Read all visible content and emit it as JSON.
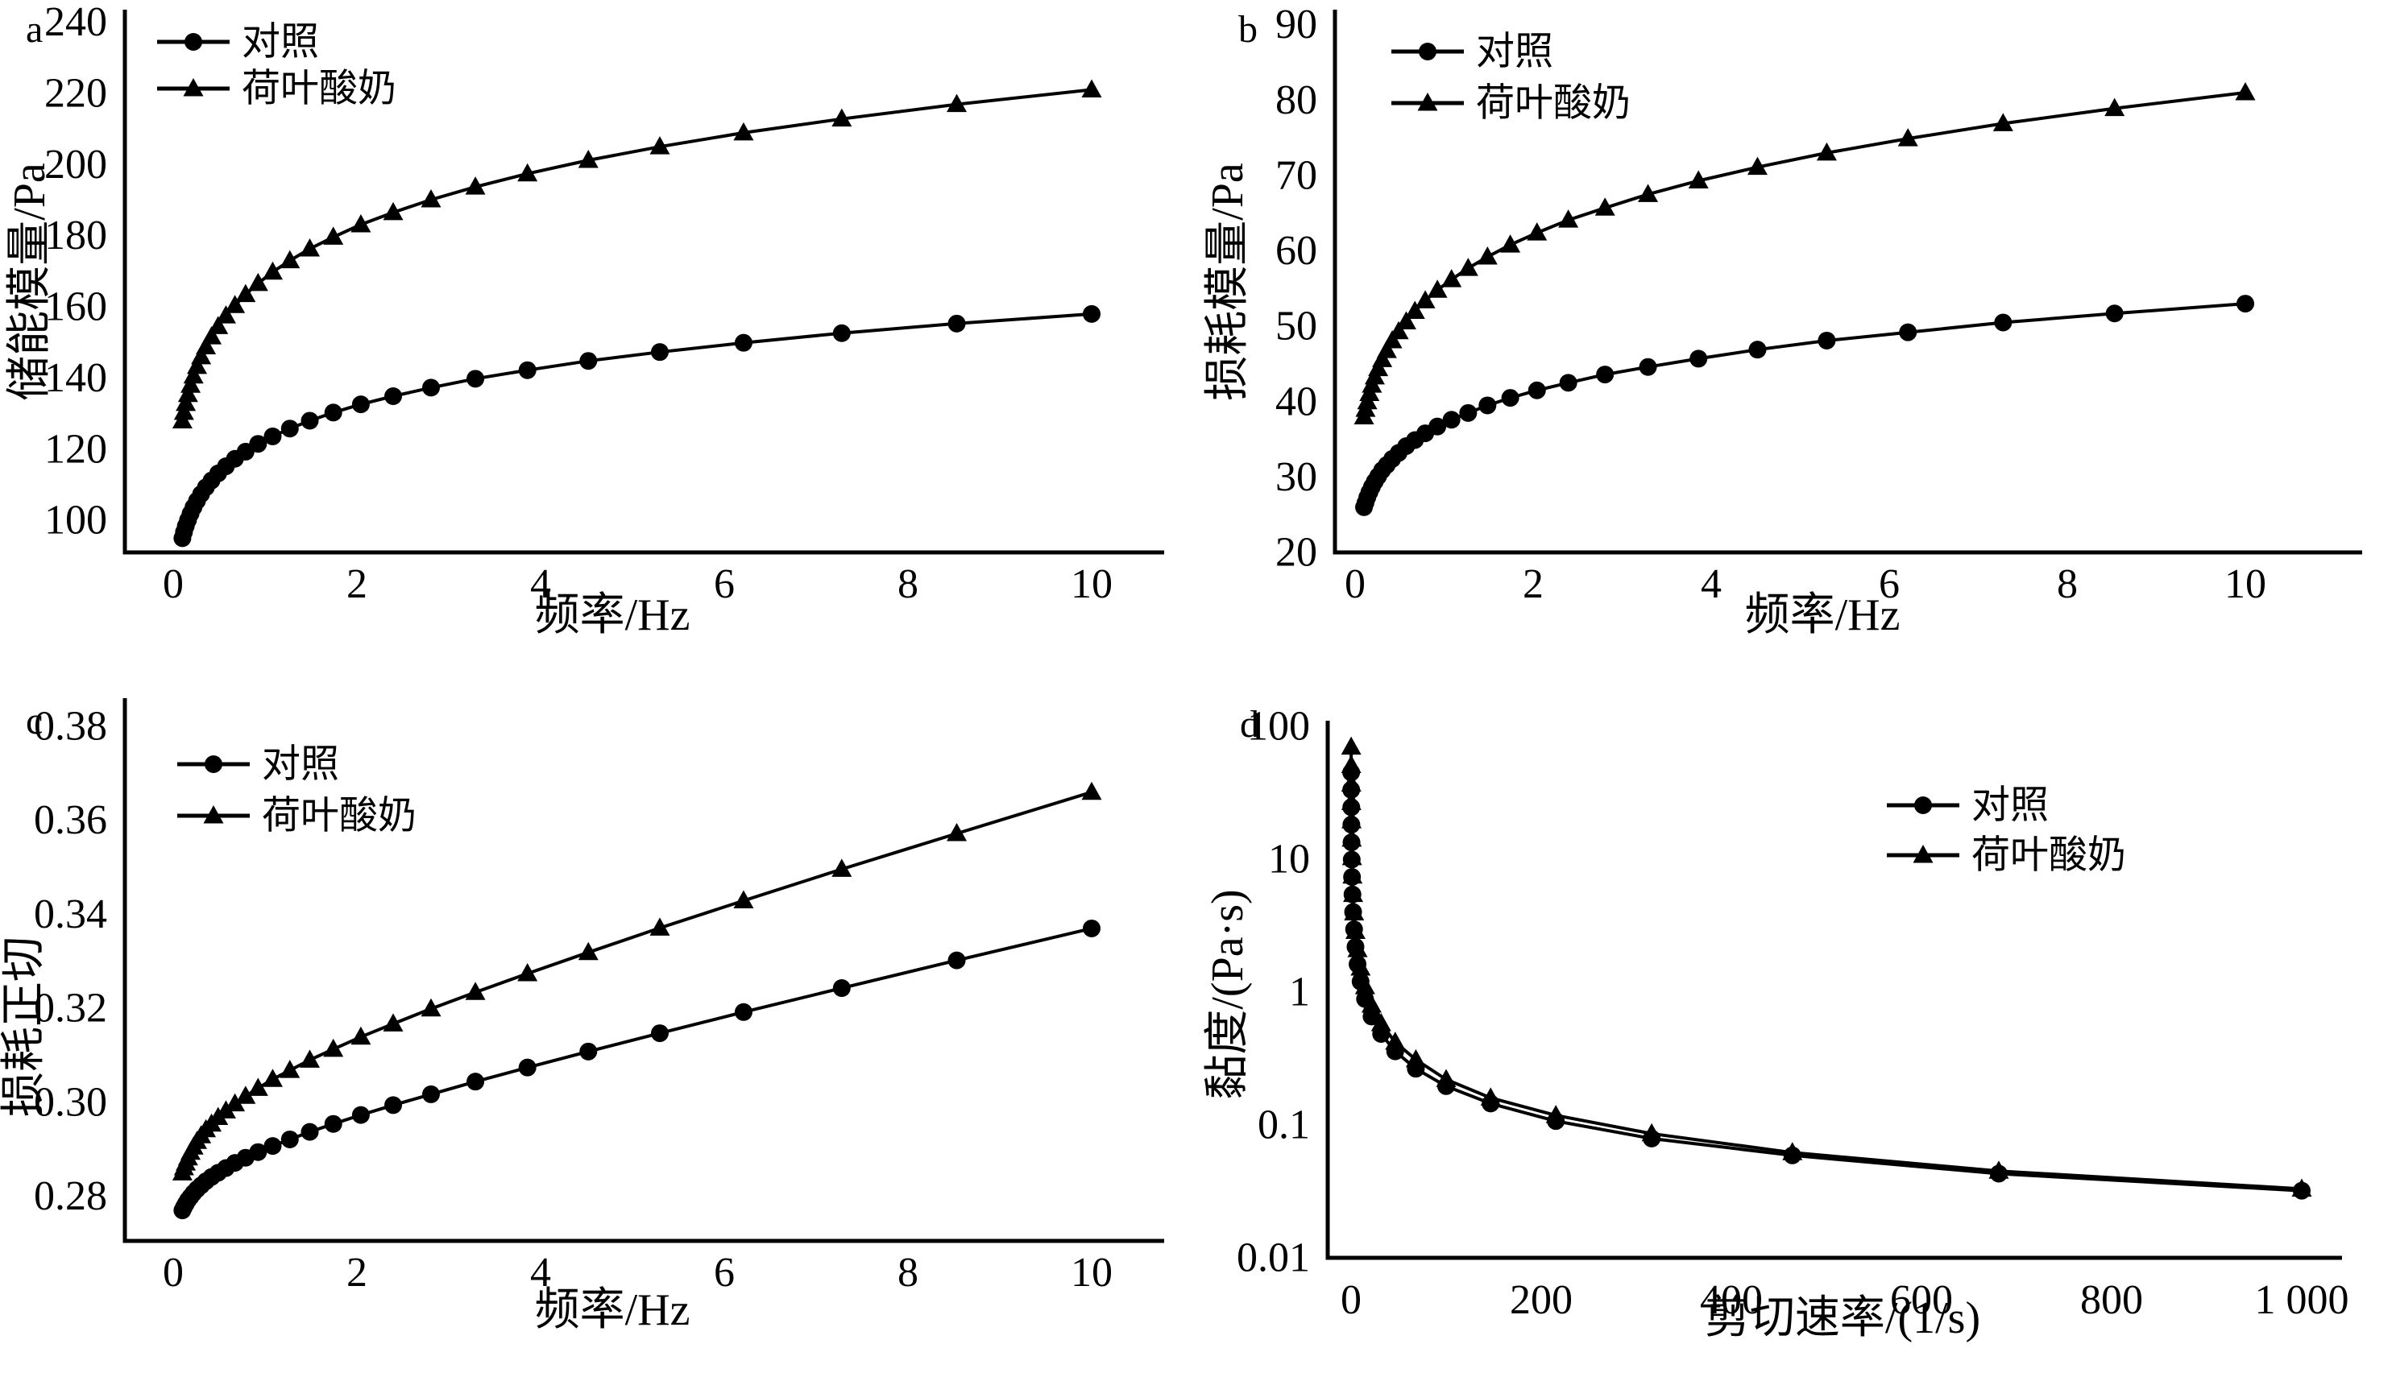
{
  "figure": {
    "background": "#ffffff",
    "ink_color": "#000000"
  },
  "chart_data": [
    {
      "id": "a",
      "type": "line",
      "panel_label": "a",
      "title": "",
      "xlabel": "频率/Hz",
      "ylabel": "储能模量/Pa",
      "xlim": [
        0,
        10.8
      ],
      "ylim": [
        91,
        243.5
      ],
      "grid": false,
      "legend_position": "top-left",
      "xticks": [
        0,
        2,
        4,
        6,
        8,
        10
      ],
      "xtick_labels": [
        "0",
        "2",
        "4",
        "6",
        "8",
        "10"
      ],
      "yticks": [
        100,
        120,
        140,
        160,
        180,
        200,
        220,
        240
      ],
      "ytick_labels": [
        "100",
        "120",
        "140",
        "160",
        "180",
        "200",
        "220",
        "240"
      ],
      "x": [
        0.1,
        0.117,
        0.137,
        0.161,
        0.189,
        0.221,
        0.259,
        0.304,
        0.356,
        0.417,
        0.489,
        0.574,
        0.672,
        0.788,
        0.924,
        1.083,
        1.27,
        1.487,
        1.743,
        2.043,
        2.395,
        2.807,
        3.29,
        3.857,
        4.52,
        5.298,
        6.21,
        7.279,
        8.531,
        10
      ],
      "series": [
        {
          "name": "对照",
          "marker": "circle",
          "values": [
            95.0,
            96.7,
            98.4,
            100.1,
            101.9,
            103.7,
            105.5,
            107.4,
            109.3,
            111.2,
            113.2,
            115.2,
            117.3,
            119.3,
            121.5,
            123.6,
            125.8,
            128.0,
            130.3,
            132.6,
            134.9,
            137.3,
            139.8,
            142.2,
            144.8,
            147.3,
            149.9,
            152.6,
            155.3,
            158.0
          ]
        },
        {
          "name": "荷叶酸奶",
          "marker": "triangle",
          "values": [
            128.0,
            130.4,
            132.9,
            135.4,
            138.0,
            140.6,
            143.3,
            146.0,
            148.8,
            151.6,
            154.5,
            157.5,
            160.4,
            163.5,
            166.6,
            169.8,
            173.0,
            176.3,
            179.6,
            183.1,
            186.5,
            190.1,
            193.7,
            197.4,
            201.2,
            205.0,
            208.9,
            212.8,
            216.9,
            221.0
          ]
        }
      ]
    },
    {
      "id": "b",
      "type": "line",
      "panel_label": "b",
      "title": "",
      "xlabel": "频率/Hz",
      "ylabel": "损耗模量/Pa",
      "xlim": [
        0,
        10.8
      ],
      "ylim": [
        20,
        92
      ],
      "grid": false,
      "legend_position": "top-left",
      "xticks": [
        0,
        2,
        4,
        6,
        8,
        10
      ],
      "xtick_labels": [
        "0",
        "2",
        "4",
        "6",
        "8",
        "10"
      ],
      "yticks": [
        20,
        30,
        40,
        50,
        60,
        70,
        80,
        90
      ],
      "ytick_labels": [
        "20",
        "30",
        "40",
        "50",
        "60",
        "70",
        "80",
        "90"
      ],
      "x": [
        0.1,
        0.117,
        0.137,
        0.161,
        0.189,
        0.221,
        0.259,
        0.304,
        0.356,
        0.417,
        0.489,
        0.574,
        0.672,
        0.788,
        0.924,
        1.083,
        1.27,
        1.487,
        1.743,
        2.043,
        2.395,
        2.807,
        3.29,
        3.857,
        4.52,
        5.298,
        6.21,
        7.279,
        8.531,
        10
      ],
      "series": [
        {
          "name": "对照",
          "marker": "circle",
          "values": [
            26.0,
            26.6,
            27.3,
            28.0,
            28.7,
            29.4,
            30.1,
            30.9,
            31.6,
            32.4,
            33.2,
            34.1,
            34.9,
            35.8,
            36.7,
            37.6,
            38.5,
            39.5,
            40.5,
            41.5,
            42.5,
            43.6,
            44.6,
            45.7,
            46.9,
            48.1,
            49.2,
            50.5,
            51.7,
            53.0
          ]
        },
        {
          "name": "荷叶酸奶",
          "marker": "triangle",
          "values": [
            38.0,
            39.0,
            40.0,
            41.1,
            42.2,
            43.3,
            44.4,
            45.6,
            46.8,
            48.1,
            49.3,
            50.6,
            52.0,
            53.4,
            54.8,
            56.2,
            57.7,
            59.2,
            60.8,
            62.4,
            64.1,
            65.7,
            67.5,
            69.3,
            71.1,
            73.0,
            74.9,
            76.9,
            78.9,
            81.0
          ]
        }
      ]
    },
    {
      "id": "c",
      "type": "line",
      "panel_label": "c",
      "title": "",
      "xlabel": "频率/Hz",
      "ylabel": "损耗正切",
      "xlim": [
        0,
        10.8
      ],
      "ylim": [
        0.2705,
        0.386
      ],
      "grid": false,
      "legend_position": "top-left",
      "xticks": [
        0,
        2,
        4,
        6,
        8,
        10
      ],
      "xtick_labels": [
        "0",
        "2",
        "4",
        "6",
        "8",
        "10"
      ],
      "yticks": [
        0.28,
        0.3,
        0.32,
        0.34,
        0.36,
        0.38
      ],
      "ytick_labels": [
        "0.28",
        "0.30",
        "0.32",
        "0.34",
        "0.36",
        "0.38"
      ],
      "x": [
        0.1,
        0.117,
        0.137,
        0.161,
        0.189,
        0.221,
        0.259,
        0.304,
        0.356,
        0.417,
        0.489,
        0.574,
        0.672,
        0.788,
        0.924,
        1.083,
        1.27,
        1.487,
        1.743,
        2.043,
        2.395,
        2.807,
        3.29,
        3.857,
        4.52,
        5.298,
        6.21,
        7.279,
        8.531,
        10
      ],
      "series": [
        {
          "name": "对照",
          "marker": "circle",
          "values": [
            0.277,
            0.2777,
            0.2784,
            0.2792,
            0.2799,
            0.2807,
            0.2815,
            0.2823,
            0.2832,
            0.2841,
            0.285,
            0.286,
            0.2871,
            0.2882,
            0.2894,
            0.2907,
            0.2921,
            0.2937,
            0.2954,
            0.2973,
            0.2994,
            0.3017,
            0.3044,
            0.3074,
            0.3108,
            0.3147,
            0.3192,
            0.3243,
            0.3302,
            0.337
          ]
        },
        {
          "name": "荷叶酸奶",
          "marker": "triangle",
          "values": [
            0.285,
            0.2861,
            0.2871,
            0.2882,
            0.2894,
            0.2905,
            0.2917,
            0.2929,
            0.2942,
            0.2954,
            0.2968,
            0.2982,
            0.2997,
            0.3013,
            0.303,
            0.3049,
            0.3068,
            0.309,
            0.3113,
            0.3139,
            0.3167,
            0.3199,
            0.3234,
            0.3274,
            0.3319,
            0.3371,
            0.3429,
            0.3496,
            0.3572,
            0.366
          ]
        }
      ]
    },
    {
      "id": "d",
      "type": "line",
      "panel_label": "d",
      "title": "",
      "xlabel": "剪切速率/(1/s)",
      "ylabel": "黏度/(Pa·s)",
      "xlim": [
        0,
        1070
      ],
      "ylim": [
        0.01,
        100
      ],
      "yscale": "log",
      "grid": false,
      "legend_position": "mid-right",
      "xticks": [
        0,
        200,
        400,
        600,
        800,
        1000
      ],
      "xtick_labels": [
        "0",
        "200",
        "400",
        "600",
        "800",
        "1 000"
      ],
      "yticks": [
        0.01,
        0.1,
        1,
        10,
        100
      ],
      "ytick_labels": [
        "0.01",
        "0.1",
        "1",
        "10",
        "100"
      ],
      "x": [
        0.1,
        0.147,
        0.215,
        0.316,
        0.464,
        0.681,
        1,
        1.468,
        2.154,
        3.162,
        4.642,
        6.813,
        10,
        14.68,
        21.54,
        31.62,
        46.42,
        68.13,
        100,
        146.8,
        215.4,
        316.2,
        464.2,
        681.3,
        1000
      ],
      "series": [
        {
          "name": "对照",
          "marker": "circle",
          "values": [
            45.0,
            33.3,
            24.6,
            18.2,
            13.4,
            9.93,
            7.35,
            5.43,
            4.01,
            2.97,
            2.19,
            1.62,
            1.2,
            0.887,
            0.655,
            0.484,
            0.358,
            0.265,
            0.196,
            0.145,
            0.107,
            0.079,
            0.059,
            0.043,
            0.032
          ]
        },
        {
          "name": "荷叶酸奶",
          "marker": "triangle",
          "values": [
            69.9,
            50.8,
            36.9,
            26.8,
            19.5,
            14.2,
            10.3,
            7.48,
            5.44,
            3.95,
            2.87,
            2.09,
            1.52,
            1.1,
            0.8,
            0.58,
            0.42,
            0.31,
            0.22,
            0.16,
            0.118,
            0.086,
            0.062,
            0.045,
            0.033
          ]
        }
      ]
    }
  ]
}
